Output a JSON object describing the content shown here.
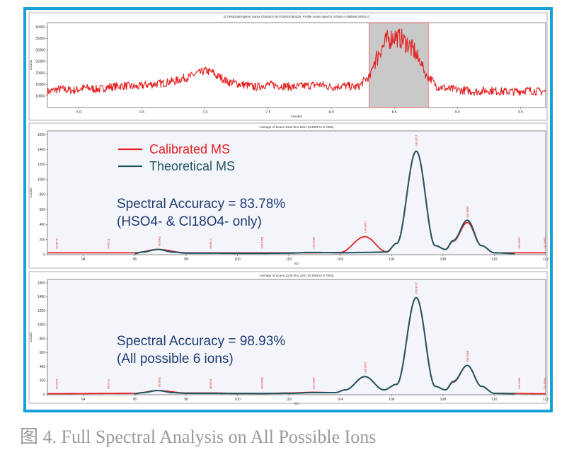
{
  "caption": "图 4. Full Spectral Analysis on All Possible Ions",
  "colors": {
    "frame": "#1aa0d8",
    "calibrated": "#e32020",
    "theoretical": "#1f5560",
    "highlight": "#c9c9c9",
    "text": "#1e3a70"
  },
  "chart_data": [
    {
      "type": "line",
      "title": "D:\\TestData\\Agilent Santa Clara\\03-28-2029\\20250329_Profile mode data for AGMS-A.d\\Blank 04001.d",
      "xlabel": "minutes",
      "ylabel": "Counts",
      "xlim": [
        5.75,
        9.7
      ],
      "ylim": [
        5000,
        42000
      ],
      "xticks": [
        "6.0",
        "6.5",
        "7.0",
        "7.5",
        "8.0",
        "8.5",
        "9.0",
        "9.5"
      ],
      "yticks": [
        "10000",
        "15000",
        "20000",
        "25000",
        "30000",
        "35000",
        "40000"
      ],
      "highlight_range": [
        8.3,
        8.77
      ],
      "series": [
        {
          "x": [
            5.75,
            5.85,
            5.95,
            6.05,
            6.15,
            6.25,
            6.35,
            6.45,
            6.55,
            6.65,
            6.75,
            6.85,
            6.95,
            7.0,
            7.05,
            7.1,
            7.2,
            7.3,
            7.4,
            7.5,
            7.6,
            7.7,
            7.8,
            7.9,
            8.0,
            8.1,
            8.2,
            8.3,
            8.35,
            8.4,
            8.45,
            8.5,
            8.55,
            8.6,
            8.65,
            8.7,
            8.77,
            8.85,
            8.95,
            9.05,
            9.15,
            9.25,
            9.35,
            9.45,
            9.55,
            9.65,
            9.7
          ],
          "y": [
            12000,
            13000,
            12500,
            13500,
            13000,
            14000,
            14500,
            14000,
            15000,
            15500,
            16500,
            18000,
            20000,
            21000,
            20500,
            18500,
            16000,
            15000,
            14000,
            15000,
            14500,
            14000,
            14500,
            15000,
            14000,
            14500,
            14000,
            18000,
            26000,
            31000,
            34500,
            36000,
            35000,
            33000,
            30000,
            25000,
            18000,
            14000,
            13000,
            12500,
            12000,
            12500,
            12000,
            12000,
            12500,
            12000,
            12000
          ]
        }
      ]
    },
    {
      "type": "line",
      "title": "Average of Scans 2139 thru 2257 (8.3069 to 8.7652)",
      "xlabel": "m/z",
      "ylabel": "Counts",
      "xlim": [
        92.6,
        112
      ],
      "ylim": [
        0,
        1650
      ],
      "xticks": [
        "94",
        "96",
        "98",
        "100",
        "102",
        "104",
        "106",
        "108",
        "110",
        "112"
      ],
      "yticks": [
        "0",
        "200",
        "400",
        "600",
        "800",
        "1000",
        "1200",
        "1400",
        "1600"
      ],
      "legend": [
        "Calibrated MS",
        "Theoretical MS"
      ],
      "legend_position": "top-left",
      "annotation": [
        "Spectral Accuracy = 83.78%",
        "(HSO4- & Cl18O4- only)"
      ],
      "peak_labels": [
        "92.9579",
        "94.9711",
        "96.9601",
        "98.9514",
        "100.9458",
        "102.9585",
        "104.9657",
        "106.9617",
        "108.9568",
        "110.9583",
        "111.9563"
      ],
      "peak_label_x": [
        92.96,
        94.97,
        96.96,
        98.95,
        100.95,
        102.96,
        104.97,
        106.96,
        108.96,
        110.96,
        111.96
      ],
      "series": [
        {
          "name": "Calibrated MS",
          "x": [
            92.6,
            96.0,
            96.9,
            98.0,
            103.0,
            104.0,
            104.96,
            105.8,
            106.2,
            106.96,
            107.7,
            108.1,
            108.4,
            108.95,
            109.5,
            110.0,
            112.0
          ],
          "y": [
            25,
            25,
            70,
            25,
            25,
            30,
            240,
            40,
            150,
            1380,
            120,
            70,
            180,
            430,
            120,
            25,
            25
          ]
        },
        {
          "name": "Theoretical MS",
          "x": [
            96.0,
            96.3,
            96.9,
            97.5,
            98.0,
            99.0,
            100.0,
            101.0,
            102.0,
            102.8,
            103.0,
            104.0,
            104.96,
            105.8,
            106.2,
            106.96,
            107.7,
            108.1,
            108.4,
            108.95,
            109.5,
            110.0,
            110.8
          ],
          "y": [
            15,
            35,
            70,
            35,
            20,
            20,
            18,
            18,
            20,
            30,
            30,
            25,
            30,
            35,
            150,
            1380,
            120,
            70,
            190,
            460,
            120,
            25,
            15
          ]
        }
      ]
    },
    {
      "type": "line",
      "title": "Average of Scans 2139 thru 2257 (8.3069 to 8.7652)",
      "xlabel": "m/z",
      "ylabel": "Counts",
      "xlim": [
        92.6,
        112
      ],
      "ylim": [
        0,
        1650
      ],
      "xticks": [
        "94",
        "96",
        "98",
        "100",
        "102",
        "104",
        "106",
        "108",
        "110",
        "112"
      ],
      "yticks": [
        "0",
        "200",
        "400",
        "600",
        "800",
        "1000",
        "1200",
        "1400",
        "1600"
      ],
      "annotation": [
        "Spectral Accuracy = 98.93%",
        "(All possible 6 ions)"
      ],
      "peak_labels": [
        "92.9579",
        "94.9711",
        "96.9601",
        "98.9514",
        "100.9458",
        "102.9585",
        "104.9657",
        "106.9617",
        "108.9568",
        "110.9583",
        "111.9563"
      ],
      "peak_label_x": [
        92.96,
        94.97,
        96.96,
        98.95,
        100.95,
        102.96,
        104.97,
        106.96,
        108.96,
        110.96,
        111.96
      ],
      "series": [
        {
          "name": "Calibrated MS",
          "x": [
            92.6,
            96.0,
            96.9,
            98.0,
            99.0,
            100.0,
            101.0,
            102.0,
            102.96,
            103.8,
            104.2,
            104.96,
            105.7,
            106.2,
            106.96,
            107.7,
            108.1,
            108.4,
            108.95,
            109.5,
            110.0,
            112.0
          ],
          "y": [
            15,
            20,
            60,
            25,
            25,
            20,
            18,
            25,
            35,
            30,
            70,
            260,
            70,
            150,
            1390,
            120,
            70,
            180,
            420,
            120,
            20,
            15
          ]
        },
        {
          "name": "Theoretical MS",
          "x": [
            96.0,
            96.3,
            96.9,
            97.5,
            98.0,
            99.0,
            100.0,
            101.0,
            102.0,
            102.96,
            103.8,
            104.2,
            104.96,
            105.7,
            106.2,
            106.96,
            107.7,
            108.1,
            108.4,
            108.95,
            109.5,
            110.0,
            110.8
          ],
          "y": [
            15,
            30,
            60,
            30,
            20,
            20,
            18,
            18,
            20,
            30,
            30,
            70,
            260,
            70,
            150,
            1390,
            120,
            70,
            190,
            420,
            120,
            20,
            15
          ]
        }
      ]
    }
  ]
}
